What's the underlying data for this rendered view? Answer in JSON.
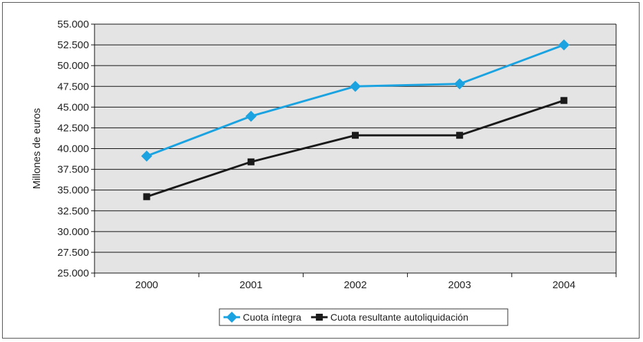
{
  "chart_data": {
    "type": "line",
    "title": "",
    "xlabel": "",
    "ylabel": "Millones de euros",
    "categories": [
      "2000",
      "2001",
      "2002",
      "2003",
      "2004"
    ],
    "ylim": [
      25000,
      55000
    ],
    "ytick_step": 2500,
    "ytick_labels": [
      "25.000",
      "27.500",
      "30.000",
      "32.500",
      "35.000",
      "37.500",
      "40.000",
      "42.500",
      "45.000",
      "47.500",
      "50.000",
      "52.500",
      "55.000"
    ],
    "grid": true,
    "legend_position": "bottom-center",
    "series": [
      {
        "name": "Cuota íntegra",
        "values": [
          39100,
          43900,
          47500,
          47800,
          52500
        ],
        "color": "#1aa3e0",
        "marker": "diamond"
      },
      {
        "name": "Cuota resultante autoliquidación",
        "values": [
          34200,
          38400,
          41600,
          41600,
          45800
        ],
        "color": "#1a1a1a",
        "marker": "square"
      }
    ],
    "plot_background": "#e4e4e4"
  }
}
